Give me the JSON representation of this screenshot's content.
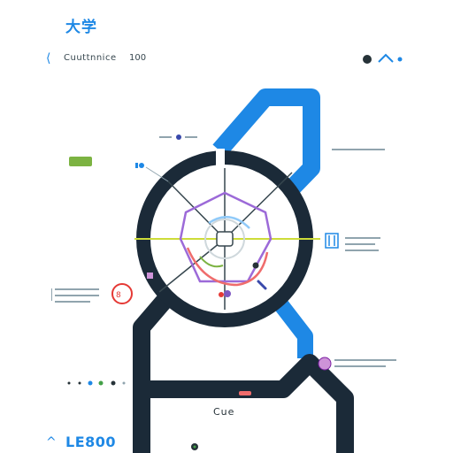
{
  "header": {
    "top_title": "大学",
    "subtitle_label": "Cuuttnnice",
    "subtitle_num": "100",
    "bottom_title": "LE800",
    "bottom_label": "Cue"
  },
  "colors": {
    "accent": "#1e88e5",
    "dark": "#1b2a38",
    "purple": "#7e57c2",
    "pink": "#e57373",
    "green": "#7cb342",
    "yellow": "#cddc39"
  },
  "icons": {
    "chevron": "chevron-icon",
    "badge": "badge-icon"
  }
}
